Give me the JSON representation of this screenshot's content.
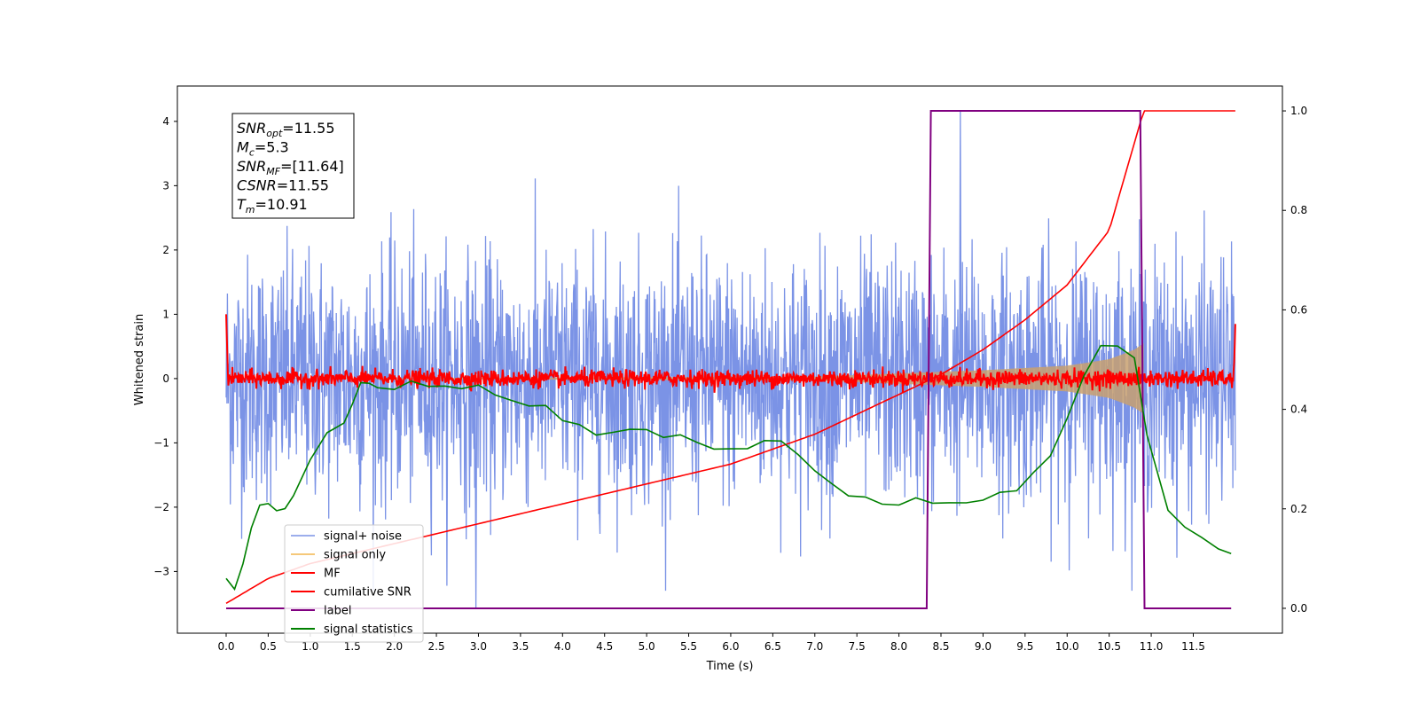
{
  "chart_data": {
    "type": "line",
    "title": "",
    "xlabel": "Time (s)",
    "ylabel": "Whitened strain",
    "xlim": [
      -0.58,
      12.56
    ],
    "ylim_left": [
      -3.96,
      4.55
    ],
    "ylim_right": [
      -0.05,
      1.05
    ],
    "grid": false,
    "legend_position": "lower-left",
    "x_ticks": [
      "0.0",
      "0.5",
      "1.0",
      "1.5",
      "2.0",
      "2.5",
      "3.0",
      "3.5",
      "4.0",
      "4.5",
      "5.0",
      "5.5",
      "6.0",
      "6.5",
      "7.0",
      "7.5",
      "8.0",
      "8.5",
      "9.0",
      "9.5",
      "10.0",
      "10.5",
      "11.0",
      "11.5"
    ],
    "x_tick_values": [
      0,
      0.5,
      1,
      1.5,
      2,
      2.5,
      3,
      3.5,
      4,
      4.5,
      5,
      5.5,
      6,
      6.5,
      7,
      7.5,
      8,
      8.5,
      9,
      9.5,
      10,
      10.5,
      11,
      11.5
    ],
    "y_left_ticks": [
      "−3",
      "−2",
      "−1",
      "0",
      "1",
      "2",
      "3",
      "4"
    ],
    "y_left_tick_values": [
      -3,
      -2,
      -1,
      0,
      1,
      2,
      3,
      4
    ],
    "y_right_ticks": [
      "0.0",
      "0.2",
      "0.4",
      "0.6",
      "0.8",
      "1.0"
    ],
    "y_right_tick_values": [
      0,
      0.2,
      0.4,
      0.6,
      0.8,
      1.0
    ],
    "annotation": [
      {
        "base": "SNR",
        "sub": "opt",
        "rest": "=11.55"
      },
      {
        "base": "M",
        "sub": "c",
        "rest": "=5.3"
      },
      {
        "base": "SNR",
        "sub": "MF",
        "rest": "=[11.64]"
      },
      {
        "base": "CSNR",
        "sub": "",
        "rest": "=11.55"
      },
      {
        "base": "T",
        "sub": "m",
        "rest": "=10.91"
      }
    ],
    "series": [
      {
        "name": "signal+ noise",
        "color": "#7b93e6",
        "axis": "left",
        "description_values": {
          "t_start": 0.0,
          "t_end": 12.0,
          "amplitude_range": [
            -3.6,
            4.15
          ]
        }
      },
      {
        "name": "signal only",
        "color": "#f5c87a",
        "axis": "left",
        "envelope": {
          "t": [
            0.0,
            7.0,
            8.0,
            9.0,
            10.0,
            10.5,
            10.8,
            10.91
          ],
          "half_width": [
            0.0,
            0.03,
            0.08,
            0.13,
            0.2,
            0.3,
            0.45,
            0.55
          ]
        }
      },
      {
        "name": "MF",
        "color": "#ff0000",
        "axis": "left",
        "noise_amplitude": 0.12
      },
      {
        "name": "cumilative SNR",
        "color": "#ff0000",
        "axis": "right",
        "x": [
          0.0,
          0.5,
          1.0,
          1.5,
          2.0,
          2.5,
          3.0,
          3.5,
          4.0,
          4.5,
          5.0,
          5.5,
          6.0,
          6.5,
          7.0,
          7.5,
          8.0,
          8.5,
          9.0,
          9.5,
          10.0,
          10.5,
          10.91,
          12.0
        ],
        "y": [
          0.01,
          0.06,
          0.09,
          0.11,
          0.13,
          0.15,
          0.17,
          0.19,
          0.21,
          0.23,
          0.25,
          0.27,
          0.29,
          0.32,
          0.35,
          0.39,
          0.43,
          0.47,
          0.52,
          0.58,
          0.65,
          0.76,
          1.0,
          1.0
        ]
      },
      {
        "name": "label",
        "color": "#800080",
        "axis": "right",
        "x": [
          0.0,
          8.33,
          8.38,
          10.87,
          10.92,
          11.95
        ],
        "y": [
          0.0,
          0.0,
          1.0,
          1.0,
          0.0,
          0.0
        ]
      },
      {
        "name": "signal statistics",
        "color": "#008000",
        "axis": "right",
        "x": [
          0.0,
          0.1,
          0.2,
          0.3,
          0.4,
          0.5,
          0.6,
          0.7,
          0.8,
          1.0,
          1.2,
          1.4,
          1.5,
          1.6,
          1.7,
          1.8,
          2.0,
          2.2,
          2.4,
          2.6,
          2.8,
          3.0,
          3.2,
          3.4,
          3.6,
          3.8,
          4.0,
          4.2,
          4.4,
          4.6,
          4.8,
          5.0,
          5.2,
          5.4,
          5.6,
          5.8,
          6.0,
          6.2,
          6.4,
          6.6,
          6.8,
          7.0,
          7.2,
          7.4,
          7.6,
          7.8,
          8.0,
          8.2,
          8.4,
          8.6,
          8.8,
          9.0,
          9.2,
          9.4,
          9.6,
          9.8,
          10.0,
          10.2,
          10.4,
          10.6,
          10.8,
          10.95,
          11.2,
          11.4,
          11.6,
          11.8,
          11.95
        ],
        "y": [
          0.06,
          0.04,
          0.09,
          0.16,
          0.21,
          0.21,
          0.2,
          0.2,
          0.23,
          0.3,
          0.35,
          0.37,
          0.41,
          0.45,
          0.45,
          0.44,
          0.44,
          0.46,
          0.45,
          0.45,
          0.44,
          0.45,
          0.43,
          0.42,
          0.41,
          0.41,
          0.38,
          0.37,
          0.35,
          0.35,
          0.36,
          0.36,
          0.34,
          0.35,
          0.33,
          0.32,
          0.32,
          0.32,
          0.34,
          0.34,
          0.31,
          0.28,
          0.25,
          0.23,
          0.22,
          0.21,
          0.21,
          0.22,
          0.21,
          0.21,
          0.21,
          0.22,
          0.23,
          0.24,
          0.27,
          0.31,
          0.38,
          0.47,
          0.53,
          0.53,
          0.5,
          0.35,
          0.2,
          0.16,
          0.14,
          0.12,
          0.11
        ]
      }
    ]
  }
}
